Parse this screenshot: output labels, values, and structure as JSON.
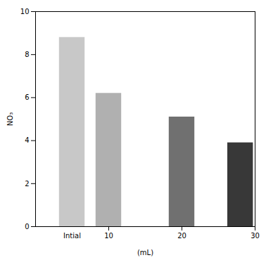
{
  "chart_data": {
    "type": "bar",
    "x": [
      5,
      10,
      20,
      28
    ],
    "values": [
      8.8,
      6.2,
      5.1,
      3.9
    ],
    "colors": [
      "#c8c8c8",
      "#b0b0b0",
      "#707070",
      "#383838"
    ],
    "xlabel": "(mL)",
    "ylabel": "NO₃",
    "xlim": [
      0,
      30
    ],
    "xticks": [
      10,
      20,
      30
    ],
    "ylim": [
      0,
      10
    ],
    "yticks": [
      0,
      2,
      4,
      6,
      8,
      10
    ],
    "annotations": [
      {
        "text": "Intial",
        "x": 5
      }
    ]
  }
}
